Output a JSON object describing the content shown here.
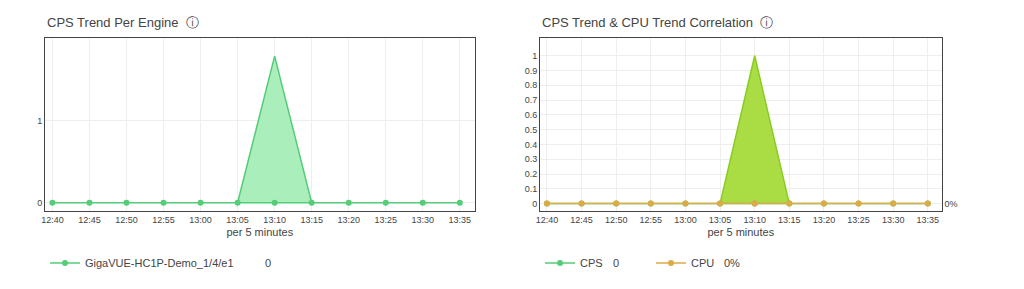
{
  "chart_data": [
    {
      "type": "line",
      "title": "CPS Trend Per Engine  ⓘ",
      "xlabel": "per 5 minutes",
      "xlim": [
        -1,
        57
      ],
      "xticks": [
        {
          "value": 0,
          "label": "12:40"
        },
        {
          "value": 5,
          "label": "12:45"
        },
        {
          "value": 10,
          "label": "12:50"
        },
        {
          "value": 15,
          "label": "12:55"
        },
        {
          "value": 20,
          "label": "13:00"
        },
        {
          "value": 25,
          "label": "13:05"
        },
        {
          "value": 30,
          "label": "13:10"
        },
        {
          "value": 35,
          "label": "13:15"
        },
        {
          "value": 40,
          "label": "13:20"
        },
        {
          "value": 45,
          "label": "13:25"
        },
        {
          "value": 50,
          "label": "13:30"
        },
        {
          "value": 55,
          "label": "13:35"
        }
      ],
      "ylim": [
        -0.1,
        2.0
      ],
      "yticks": [
        0,
        1
      ],
      "grid": true,
      "series": [
        {
          "type": "area",
          "color": "#aaeebb",
          "x": [
            25,
            30,
            35
          ],
          "values": [
            0,
            1.78,
            0
          ]
        },
        {
          "type": "line",
          "color": "#55cc77",
          "x": [
            25,
            30,
            35
          ],
          "values": [
            0,
            1.78,
            0
          ]
        },
        {
          "name": "GigaVUE-HC1P-Demo_1/4/e1",
          "type": "line",
          "marker": "circle",
          "color": "#55cc77",
          "x": [
            0,
            5,
            10,
            15,
            20,
            25,
            30,
            35,
            40,
            45,
            50,
            55
          ],
          "values": [
            0,
            0,
            0,
            0,
            0,
            0,
            0,
            0,
            0,
            0,
            0,
            0
          ]
        }
      ],
      "annotations": [
        "0"
      ]
    },
    {
      "type": "line",
      "title": "CPS Trend & CPU Trend Correlation  ⓘ",
      "xlabel": "per 5 minutes",
      "xlim": [
        -1,
        57
      ],
      "xticks": [
        {
          "value": 0,
          "label": "12:40"
        },
        {
          "value": 5,
          "label": "12:45"
        },
        {
          "value": 10,
          "label": "12:50"
        },
        {
          "value": 15,
          "label": "12:55"
        },
        {
          "value": 20,
          "label": "13:00"
        },
        {
          "value": 25,
          "label": "13:05"
        },
        {
          "value": 30,
          "label": "13:10"
        },
        {
          "value": 35,
          "label": "13:15"
        },
        {
          "value": 40,
          "label": "13:20"
        },
        {
          "value": 45,
          "label": "13:25"
        },
        {
          "value": 50,
          "label": "13:30"
        },
        {
          "value": 55,
          "label": "13:35"
        }
      ],
      "ylim": [
        -0.05,
        1.12
      ],
      "yticks": [
        0,
        0.1,
        0.2,
        0.3,
        0.4,
        0.5,
        0.6,
        0.7,
        0.8,
        0.9,
        1
      ],
      "y2lim": [
        -0.05,
        1.12
      ],
      "y2ticks": [
        {
          "value": 0,
          "label": "0%"
        }
      ],
      "grid": true,
      "series": [
        {
          "type": "area",
          "color": "#aadd44",
          "x": [
            25,
            30,
            35
          ],
          "values": [
            0,
            1.0,
            0
          ]
        },
        {
          "type": "line",
          "color": "#88cc22",
          "x": [
            25,
            30,
            35
          ],
          "values": [
            0,
            1.0,
            0
          ]
        },
        {
          "name": "CPS",
          "type": "line",
          "marker": "circle",
          "color": "#55cc77",
          "x": [
            0,
            5,
            10,
            15,
            20,
            25,
            30,
            35,
            40,
            45,
            50,
            55
          ],
          "values": [
            0,
            0,
            0,
            0,
            0,
            0,
            0,
            0,
            0,
            0,
            0,
            0
          ]
        },
        {
          "name": "CPU",
          "type": "line",
          "marker": "circle",
          "color": "#ddaa44",
          "axis": "y2",
          "x": [
            0,
            5,
            10,
            15,
            20,
            25,
            30,
            35,
            40,
            45,
            50,
            55
          ],
          "values": [
            0,
            0,
            0,
            0,
            0,
            0,
            0,
            0,
            0,
            0,
            0,
            0
          ]
        }
      ],
      "annotations": [
        "0",
        "0%"
      ]
    }
  ]
}
